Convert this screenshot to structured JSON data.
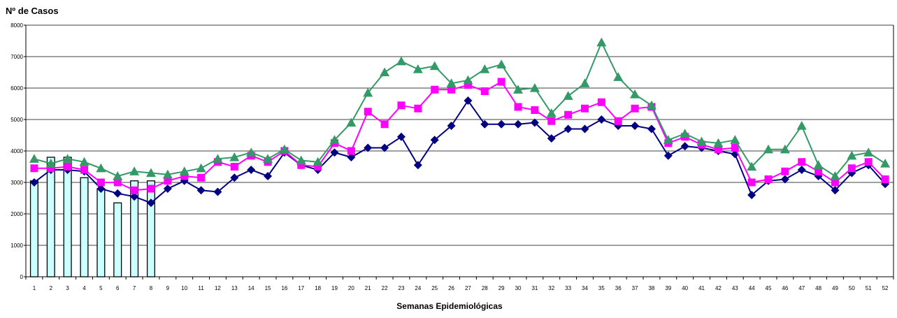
{
  "chart_data": {
    "type": "bar+line",
    "title": "",
    "ylabel": "Nº de Casos",
    "xlabel": "Semanas Epidemiológicas",
    "ylim": [
      0,
      8000
    ],
    "yticks": [
      0,
      1000,
      2000,
      3000,
      4000,
      5000,
      6000,
      7000,
      8000
    ],
    "grid": true,
    "legend": "none",
    "categories": [
      "1",
      "2",
      "3",
      "4",
      "5",
      "6",
      "7",
      "8",
      "9",
      "10",
      "11",
      "12",
      "13",
      "14",
      "15",
      "16",
      "17",
      "18",
      "19",
      "20",
      "21",
      "22",
      "23",
      "24",
      "25",
      "26",
      "27",
      "28",
      "29",
      "30",
      "31",
      "32",
      "33",
      "34",
      "35",
      "36",
      "37",
      "38",
      "39",
      "40",
      "41",
      "42",
      "43",
      "44",
      "45",
      "46",
      "47",
      "48",
      "49",
      "50",
      "51",
      "52"
    ],
    "bars": {
      "color": "#ccffff",
      "values": [
        3050,
        3800,
        3800,
        3150,
        2800,
        2350,
        3050,
        3050
      ]
    },
    "series": [
      {
        "marker": "diamond",
        "color": "#000080",
        "values": [
          3000,
          3400,
          3400,
          3350,
          2800,
          2650,
          2550,
          2350,
          2800,
          3050,
          2750,
          2700,
          3150,
          3400,
          3200,
          3950,
          3550,
          3400,
          3950,
          3800,
          4100,
          4100,
          4450,
          3550,
          4350,
          4800,
          5600,
          4850,
          4850,
          4850,
          4900,
          4400,
          4700,
          4700,
          5000,
          4800,
          4800,
          4700,
          3850,
          4150,
          4100,
          4000,
          3900,
          2600,
          3050,
          3100,
          3400,
          3200,
          2750,
          3300,
          3550,
          2950
        ]
      },
      {
        "marker": "square",
        "color": "#ff00ff",
        "values": [
          3450,
          3450,
          3500,
          3400,
          3000,
          3000,
          2750,
          2800,
          3050,
          3200,
          3150,
          3650,
          3500,
          3850,
          3650,
          4000,
          3550,
          3500,
          4250,
          4000,
          5250,
          4850,
          5450,
          5350,
          5950,
          5950,
          6100,
          5900,
          6200,
          5400,
          5300,
          4950,
          5150,
          5350,
          5550,
          4950,
          5350,
          5400,
          4250,
          4450,
          4200,
          4050,
          4100,
          3000,
          3100,
          3350,
          3650,
          3350,
          3000,
          3450,
          3650,
          3100
        ]
      },
      {
        "marker": "triangle",
        "color": "#339966",
        "values": [
          3750,
          3600,
          3750,
          3650,
          3450,
          3200,
          3350,
          3300,
          3250,
          3350,
          3450,
          3750,
          3800,
          3950,
          3750,
          4050,
          3700,
          3650,
          4350,
          4900,
          5850,
          6500,
          6850,
          6600,
          6700,
          6150,
          6250,
          6600,
          6750,
          5950,
          6000,
          5200,
          5750,
          6150,
          7450,
          6350,
          5800,
          5450,
          4350,
          4550,
          4300,
          4250,
          4350,
          3500,
          4050,
          4050,
          4800,
          3550,
          3200,
          3850,
          3950,
          3600
        ]
      }
    ]
  }
}
